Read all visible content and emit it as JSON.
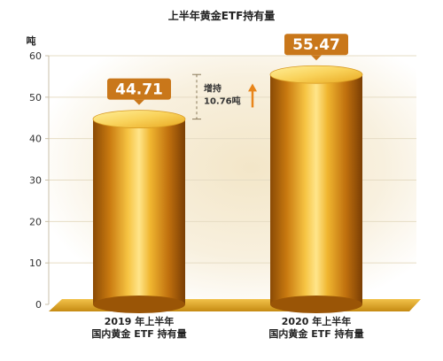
{
  "chart_data": {
    "type": "bar",
    "title": "上半年黄金ETF持有量",
    "ylabel": "吨",
    "ylim": [
      0,
      60
    ],
    "yticks": [
      0,
      10,
      20,
      30,
      40,
      50,
      60
    ],
    "categories": [
      "2019 年上半年\n国内黄金 ETF 持有量",
      "2020 年上半年\n国内黄金 ETF 持有量"
    ],
    "values": [
      44.71,
      55.47
    ],
    "data_labels": [
      "44.71",
      "55.47"
    ],
    "annotation": {
      "line1": "增持",
      "line2": "10.76吨"
    },
    "grid": true,
    "colors": {
      "bar": "#d98a12",
      "label_box": "#c9771a",
      "axis": "#c9bfa8",
      "arrow": "#e8851a"
    }
  }
}
